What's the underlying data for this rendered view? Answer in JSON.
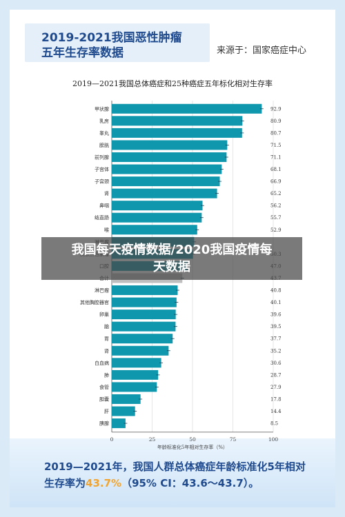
{
  "header": {
    "title_line1": "2019-2021我国恶性肿瘤",
    "title_line2": "五年生存率数据",
    "source": "来源于：国家癌症中心"
  },
  "chart_data": {
    "type": "bar",
    "orientation": "horizontal",
    "title": "2019—2021我国总体癌症和25种癌症五年标化相对生存率",
    "xlabel": "年龄标准化5年相对生存率（%）",
    "xlim": [
      0,
      100
    ],
    "xticks": [
      0,
      25,
      50,
      75,
      100
    ],
    "bar_color": "#0f97ad",
    "highlight_color": "#bfbfbf",
    "highlight_category": "合计",
    "categories": [
      "甲状腺",
      "乳房",
      "睾丸",
      "膀胱",
      "前列腺",
      "子宫体",
      "子宫颈",
      "肾",
      "鼻咽",
      "结直肠",
      "喉",
      "淋巴瘤",
      "皮肤黑色素瘤",
      "口腔",
      "合计",
      "淋巴瘤",
      "其他胸腔器官",
      "卵巢",
      "脑",
      "胃",
      "肾",
      "白血病",
      "肺",
      "食管",
      "胆囊",
      "肝",
      "胰腺"
    ],
    "values": [
      92.9,
      80.9,
      80.7,
      71.5,
      71.1,
      68.1,
      66.9,
      65.2,
      56.2,
      55.7,
      52.9,
      51.0,
      50.3,
      47.0,
      43.7,
      40.8,
      40.1,
      39.6,
      39.5,
      37.7,
      35.2,
      30.6,
      28.7,
      27.9,
      17.8,
      14.4,
      8.5
    ],
    "value_labels": [
      "92.9",
      "80.9",
      "80.7",
      "71.5",
      "71.1",
      "68.1",
      "66.9",
      "65.2",
      "56.2",
      "55.7",
      "52.9",
      "",
      "50.3",
      "47.0",
      "43.7",
      "40.8",
      "40.1",
      "39.6",
      "39.5",
      "37.7",
      "35.2",
      "30.6",
      "28.7",
      "27.9",
      "17.8",
      "14.4",
      "8.5"
    ]
  },
  "overlay": {
    "line1": "我国每天疫情数据/2020我国疫情每",
    "line2": "天数据"
  },
  "summary": {
    "text_a": "2019—2021年，我国人群总体癌症年龄标准化5年相对",
    "text_b": "生存率为",
    "highlight": "43.7%",
    "text_c": "（95% CI：43.6～43.7）。"
  }
}
